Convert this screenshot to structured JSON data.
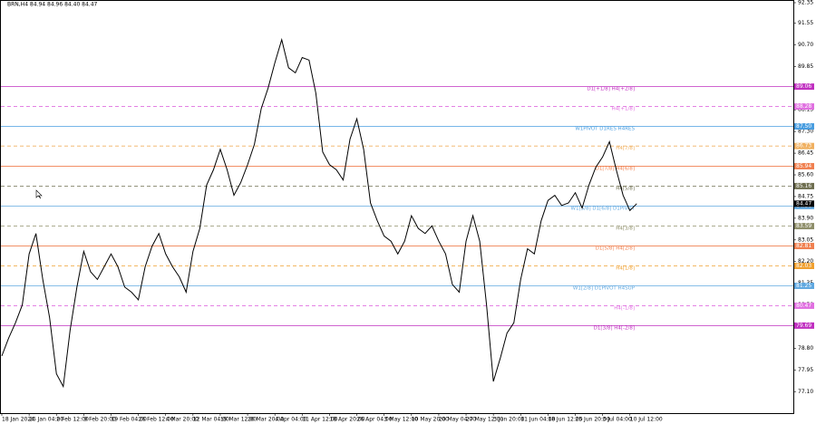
{
  "chart_data": {
    "type": "line",
    "title": "BRN,H4 84.94 84.96 84.40 84.47",
    "color": "#000000",
    "categories": [
      "18 Jan 2024",
      null,
      null,
      null,
      "26 Jan 04:00",
      null,
      null,
      null,
      "2 Feb 12:00",
      null,
      null,
      null,
      "9 Feb 20:00",
      null,
      null,
      null,
      "19 Feb 04:00",
      null,
      null,
      null,
      "26 Feb 12:00",
      null,
      null,
      null,
      "4 Mar 20:00",
      null,
      null,
      null,
      "12 Mar 04:00",
      null,
      null,
      null,
      "19 Mar 12:00",
      null,
      null,
      null,
      "26 Mar 20:00",
      null,
      null,
      null,
      "4 Apr 04:00",
      null,
      null,
      null,
      "11 Apr 12:00",
      null,
      null,
      null,
      "18 Apr 20:00",
      null,
      null,
      null,
      "26 Apr 04:00",
      null,
      null,
      null,
      "3 May 12:00",
      null,
      null,
      null,
      "10 May 20:00",
      null,
      null,
      null,
      "20 May 04:00",
      null,
      null,
      null,
      "27 May 12:00",
      null,
      null,
      null,
      "3 Jun 20:00",
      null,
      null,
      null,
      "11 Jun 04:00",
      null,
      null,
      null,
      "18 Jun 12:00",
      null,
      null,
      null,
      "25 Jun 20:00",
      null,
      null,
      null,
      "3 Jul 04:00",
      null,
      null,
      null,
      "10 Jul 12:00",
      null
    ],
    "values": [
      78.5,
      79.2,
      79.8,
      80.5,
      82.5,
      83.3,
      81.5,
      80.0,
      77.8,
      77.3,
      79.5,
      81.2,
      82.6,
      81.8,
      81.5,
      82.0,
      82.5,
      82.0,
      81.2,
      81.0,
      80.7,
      82.0,
      82.8,
      83.3,
      82.5,
      82.0,
      81.6,
      81.0,
      82.6,
      83.5,
      85.2,
      85.8,
      86.6,
      85.8,
      84.8,
      85.3,
      86.0,
      86.8,
      88.2,
      89.0,
      90.0,
      90.9,
      89.8,
      89.6,
      90.2,
      90.1,
      88.8,
      86.5,
      86.0,
      85.8,
      85.4,
      87.0,
      87.8,
      86.6,
      84.5,
      83.8,
      83.2,
      83.0,
      82.5,
      83.0,
      84.0,
      83.5,
      83.3,
      83.6,
      83.0,
      82.5,
      81.3,
      81.0,
      83.0,
      84.0,
      83.0,
      80.5,
      77.5,
      78.4,
      79.4,
      79.8,
      81.5,
      82.7,
      82.5,
      83.8,
      84.6,
      84.8,
      84.4,
      84.5,
      84.9,
      84.3,
      85.2,
      85.9,
      86.3,
      86.9,
      85.8,
      84.8,
      84.2,
      84.47
    ],
    "ylim": [
      76.4,
      92.35
    ],
    "yticks": [
      92.35,
      91.55,
      {
        "value": 90.7,
        "label": "90.70"
      },
      89.85,
      {
        "value": 89.0,
        "label": "89.00"
      },
      88.15,
      {
        "value": 87.3,
        "label": "87.30"
      },
      86.45,
      {
        "value": 85.6,
        "label": "85.60"
      },
      84.75,
      {
        "value": 83.9,
        "label": "83.90"
      },
      83.05,
      {
        "value": 82.2,
        "label": "82.20"
      },
      81.35,
      {
        "value": 80.5,
        "label": "80.50"
      },
      79.65,
      {
        "value": 78.8,
        "label": "78.80"
      },
      77.95,
      {
        "value": 77.1,
        "label": "77.10"
      }
    ],
    "levels": {
      "names": [
        "D1[+1/8] H4[+2/8]",
        "H4[+1/8]",
        "W1PIVOT D1RES H4RES",
        "H4[7/8]",
        "D1[7/8] H4[6/8]",
        "H4[5/8]",
        "W1[5/8] D1[6/8] D1PIVOT",
        "H4[3/8]",
        "D1[5/8] H4[2/8]",
        "H4[1/8]",
        "W1[2/8] D1PIVOT H4SUP",
        "H4[-1/8]",
        "D1[3/8] H4[-2/8]"
      ],
      "values": [
        89.06,
        88.28,
        87.5,
        86.73,
        85.94,
        85.16,
        84.38,
        83.59,
        82.81,
        82.03,
        81.25,
        80.47,
        79.69
      ],
      "value_labels": [
        "89.06",
        "88.28",
        "87.50",
        "86.73",
        "85.94",
        "85.16",
        "84.38",
        "83.59",
        "82.81",
        "82.03",
        "81.25",
        "80.47",
        "79.69"
      ],
      "colors": [
        "#c030c0",
        "#e070e0",
        "#4a9ee0",
        "#f0b060",
        "#f08050",
        "#6f6f50",
        "#60a8e0",
        "#8f8f6a",
        "#f08050",
        "#f0a030",
        "#60a8e0",
        "#e070e0",
        "#c030c0"
      ],
      "dashed": [
        false,
        true,
        false,
        true,
        false,
        true,
        false,
        true,
        false,
        true,
        false,
        true,
        false
      ]
    }
  }
}
